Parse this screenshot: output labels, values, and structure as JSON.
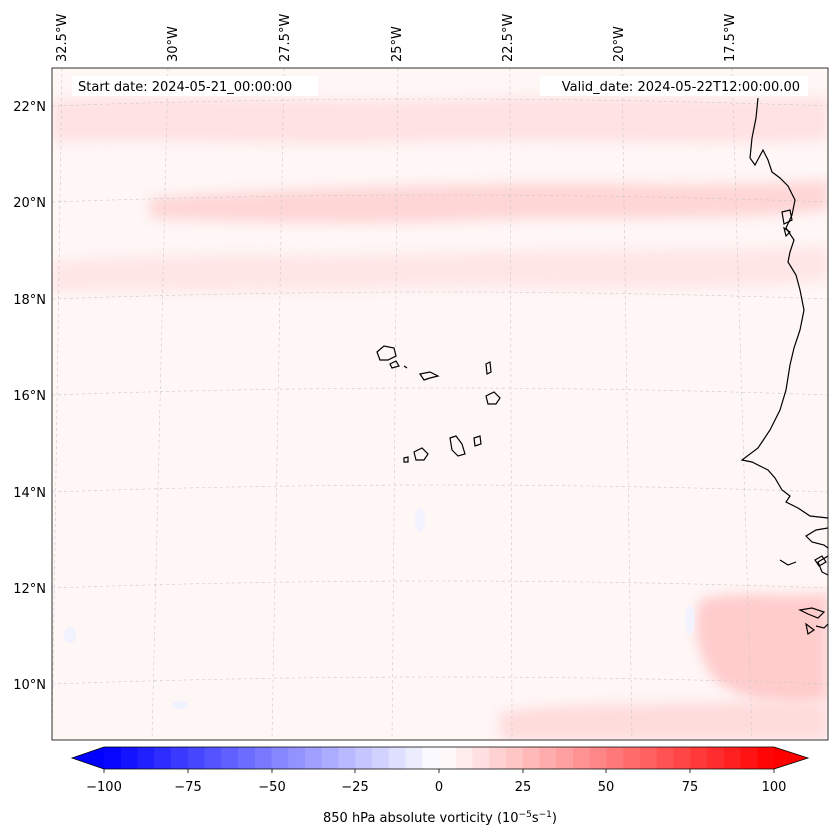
{
  "header": {
    "start_date": "Start date: 2024-05-21_00:00:00",
    "valid_date": "Valid_date: 2024-05-22T12:00:00.00"
  },
  "map": {
    "lon_labels": [
      "32.5°W",
      "30°W",
      "27.5°W",
      "25°W",
      "22.5°W",
      "20°W",
      "17.5°W"
    ],
    "lat_labels": [
      "22°N",
      "20°N",
      "18°N",
      "16°N",
      "14°N",
      "12°N",
      "10°N"
    ],
    "gridlines": true
  },
  "colorbar": {
    "ticks": [
      "−100",
      "−75",
      "−50",
      "−25",
      "0",
      "25",
      "50",
      "75",
      "100"
    ],
    "label": "850 hPa absolute vorticity (10",
    "label_exp1": "−5",
    "label_mid": "s",
    "label_exp2": "−1",
    "label_end": ")",
    "min_color": "#0000ff",
    "mid_color": "#ffffff",
    "max_color": "#ff0000",
    "extend": "both"
  },
  "colors": {
    "background": "#fff6f6",
    "coastline": "#000000",
    "gridline": "#cccccc"
  }
}
